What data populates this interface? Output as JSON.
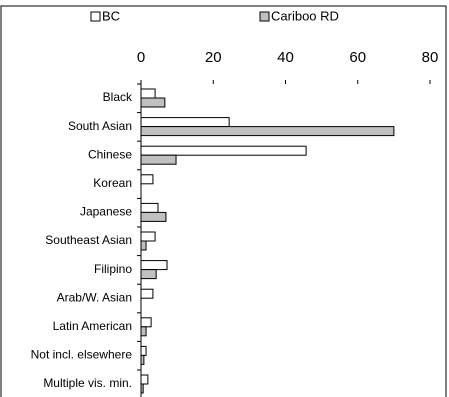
{
  "chart_data": {
    "type": "bar",
    "orientation": "horizontal",
    "categories": [
      "Black",
      "South Asian",
      "Chinese",
      "Korean",
      "Japanese",
      "Southeast Asian",
      "Filipino",
      "Arab/W. Asian",
      "Latin American",
      "Not incl. elsewhere",
      "Multiple vis. min."
    ],
    "series": [
      {
        "name": "BC",
        "color": "#ffffff",
        "values": [
          3.9,
          24.4,
          45.7,
          3.3,
          4.7,
          3.9,
          7.2,
          3.3,
          2.8,
          1.4,
          1.9
        ]
      },
      {
        "name": "Cariboo RD",
        "color": "#c0c0c0",
        "values": [
          6.6,
          70,
          9.7,
          0,
          6.9,
          1.4,
          4.2,
          0,
          1.4,
          0.8,
          0.6
        ]
      }
    ],
    "xlim": [
      0,
      80
    ],
    "xticks": [
      0,
      20,
      40,
      60,
      80
    ],
    "legend": "top"
  }
}
